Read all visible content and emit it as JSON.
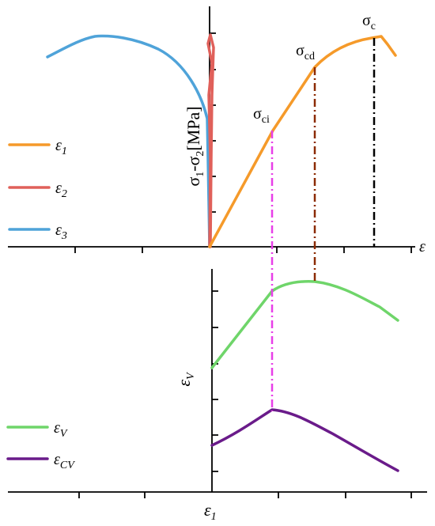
{
  "upper_plot": {
    "y_axis_label": {
      "p1": "σ",
      "s1": "1",
      "mid": "-σ",
      "s2": "2",
      "unit": "[MPa]"
    },
    "x_axis_label": "ε",
    "annotations": [
      {
        "symbol": "σ",
        "subscript": "ci"
      },
      {
        "symbol": "σ",
        "subscript": "cd"
      },
      {
        "symbol": "σ",
        "subscript": "c"
      }
    ],
    "legend": [
      {
        "symbol": "ε",
        "subscript": "1"
      },
      {
        "symbol": "ε",
        "subscript": "2"
      },
      {
        "symbol": "ε",
        "subscript": "3"
      }
    ]
  },
  "lower_plot": {
    "y_axis_label": {
      "symbol": "ε",
      "subscript": "V"
    },
    "x_axis_label": {
      "symbol": "ε",
      "subscript": "1"
    },
    "legend": [
      {
        "symbol": "ε",
        "subscript": "V"
      },
      {
        "symbol": "ε",
        "subscript": "CV"
      }
    ]
  }
}
